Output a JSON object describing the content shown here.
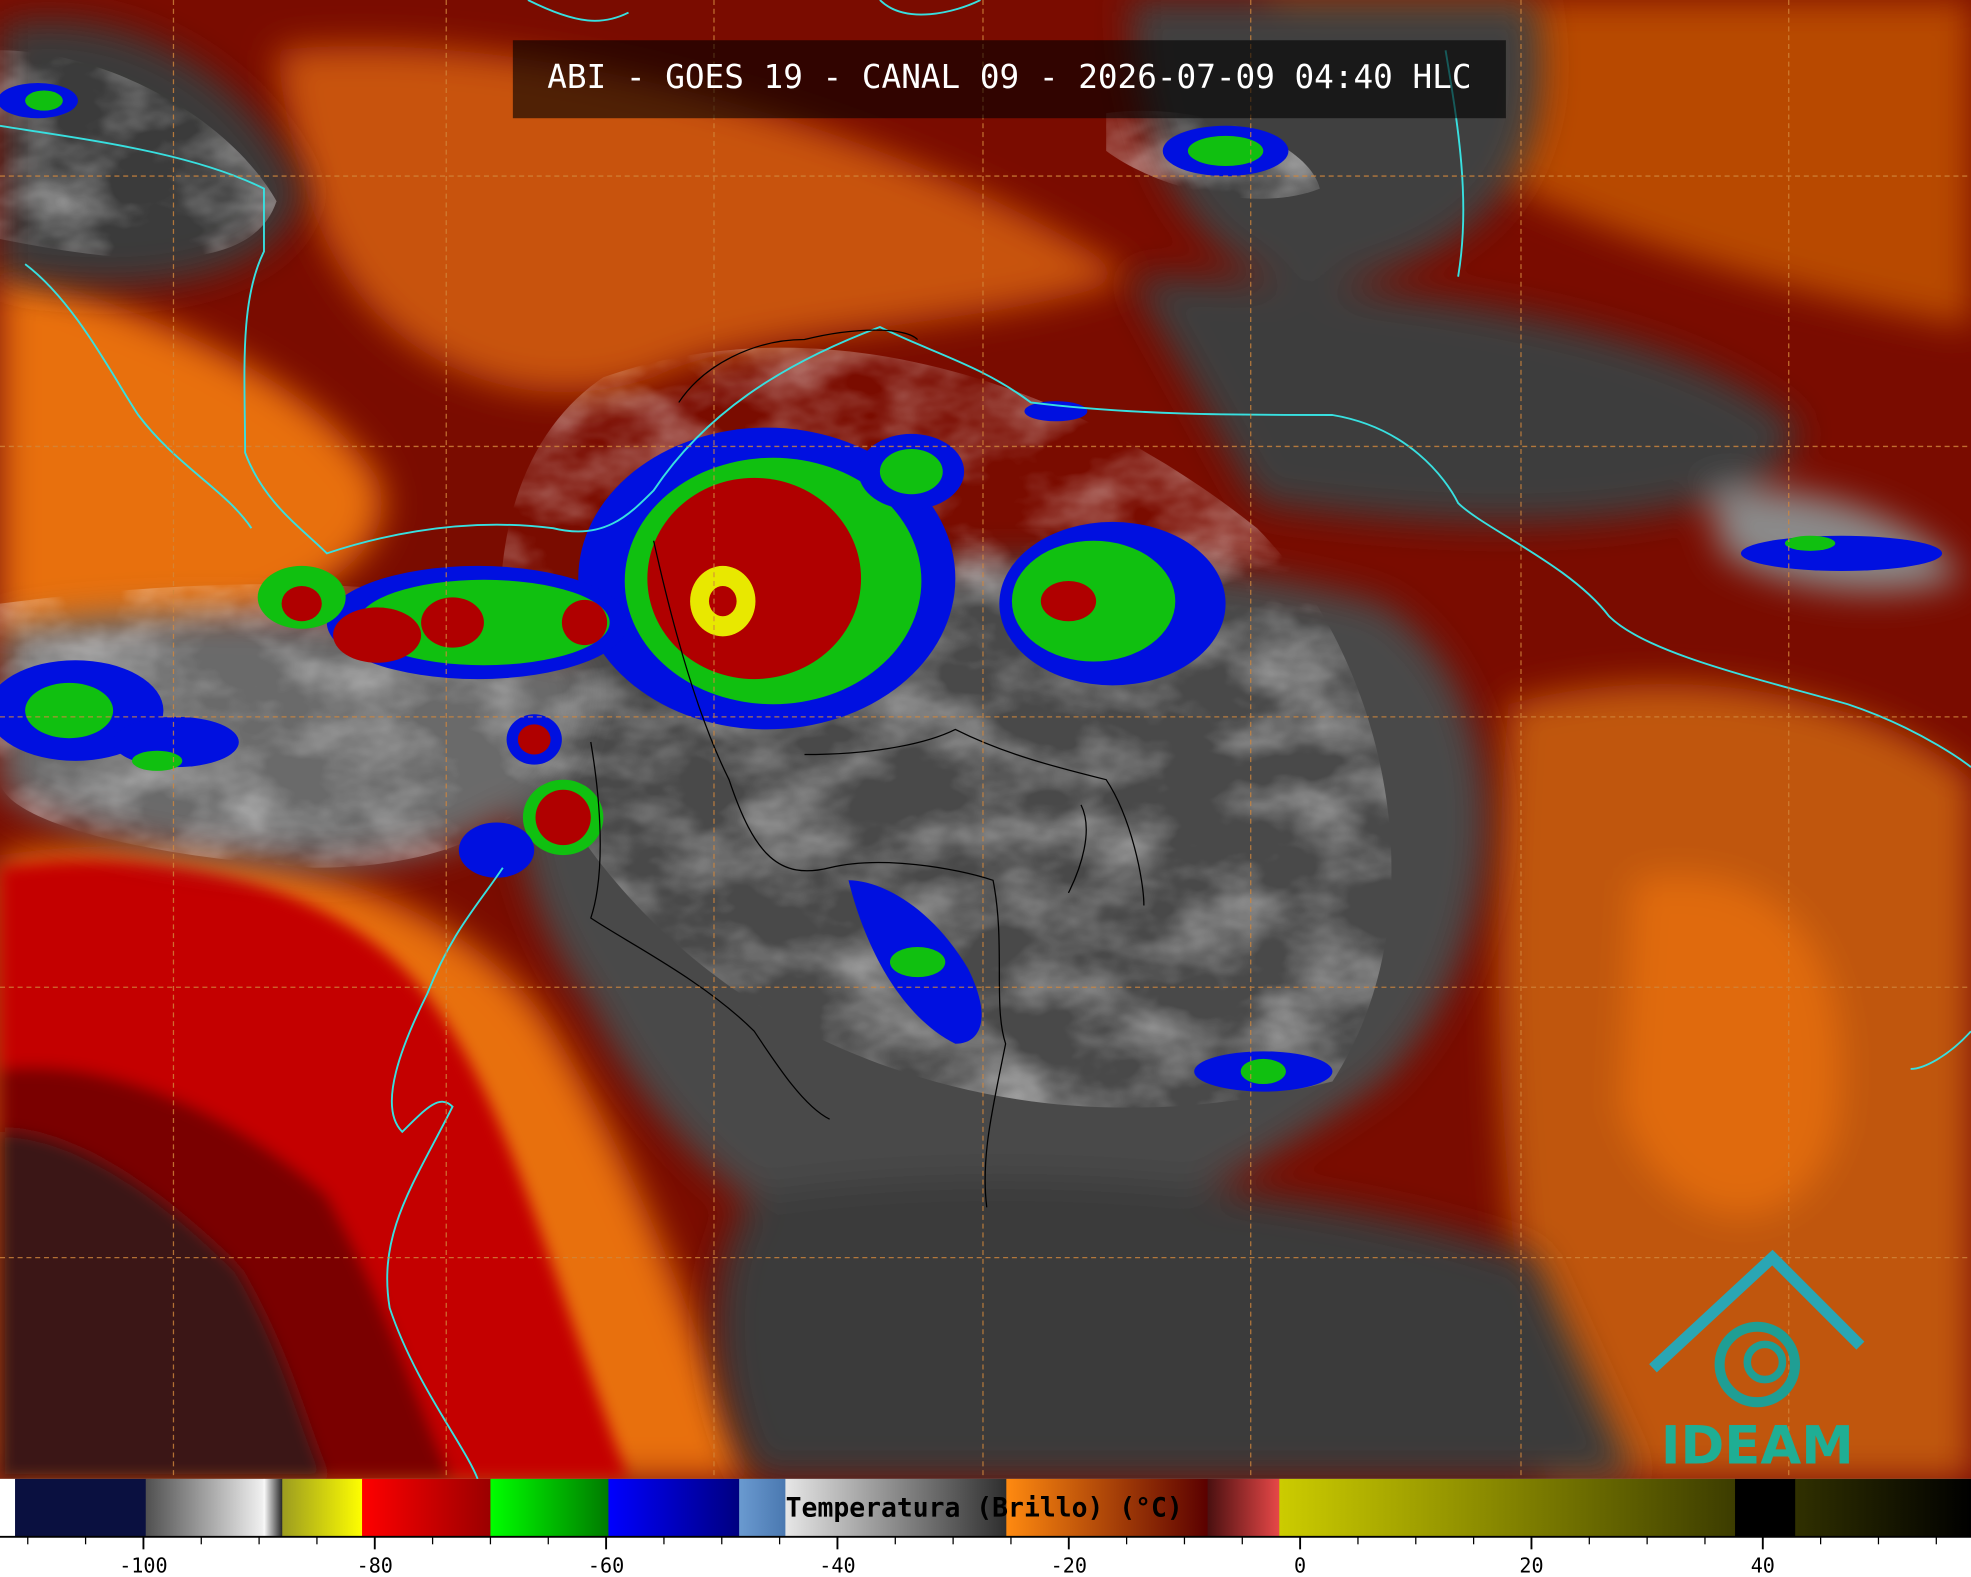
{
  "title": "ABI - GOES 19 - CANAL 09 - 2026-07-09 04:40 HLC",
  "logo": "IDEAM",
  "colorbar": {
    "label": "Temperatura (Brillo) (°C)",
    "range": [
      -112.4,
      58
    ],
    "ticks": [
      -100,
      -80,
      -60,
      -40,
      -20,
      0,
      20,
      40
    ],
    "minor_ticks": [
      -110,
      -105,
      -95,
      -90,
      -85,
      -75,
      -70,
      -65,
      -55,
      -50,
      -45,
      -35,
      -30,
      -25,
      -15,
      -10,
      -5,
      5,
      10,
      15,
      25,
      30,
      35,
      45,
      50,
      55
    ],
    "segments": [
      {
        "from": -112.4,
        "to": -111.1,
        "colors": [
          "#ffffff",
          "#ffffff"
        ]
      },
      {
        "from": -111.1,
        "to": -99.8,
        "colors": [
          "#0a1040",
          "#0a1040"
        ]
      },
      {
        "from": -99.8,
        "to": -89.6,
        "colors": [
          "#505050",
          "#f2f2f2"
        ]
      },
      {
        "from": -89.6,
        "to": -88,
        "colors": [
          "#ffffff",
          "#202020"
        ]
      },
      {
        "from": -88,
        "to": -81.1,
        "colors": [
          "#9c9c20",
          "#ffff00"
        ]
      },
      {
        "from": -81.1,
        "to": -70,
        "colors": [
          "#ff0000",
          "#9a0000"
        ]
      },
      {
        "from": -70,
        "to": -59.8,
        "colors": [
          "#00ff00",
          "#007a00"
        ]
      },
      {
        "from": -59.8,
        "to": -48.5,
        "colors": [
          "#0000ff",
          "#000080"
        ]
      },
      {
        "from": -48.5,
        "to": -44.5,
        "colors": [
          "#6a9ad0",
          "#4a78b0"
        ]
      },
      {
        "from": -44.5,
        "to": -25.4,
        "colors": [
          "#e6e6e6",
          "#2e2e2e"
        ]
      },
      {
        "from": -25.4,
        "to": -8,
        "colors": [
          "#ff8a10",
          "#5a0000"
        ]
      },
      {
        "from": -8,
        "to": -1.8,
        "colors": [
          "#4a1010",
          "#e84848"
        ]
      },
      {
        "from": -1.8,
        "to": 37.6,
        "colors": [
          "#cccc00",
          "#3c3c00"
        ]
      },
      {
        "from": 37.6,
        "to": 42.8,
        "colors": [
          "#000000",
          "#000000"
        ]
      },
      {
        "from": 42.8,
        "to": 58,
        "colors": [
          "#303000",
          "#000000"
        ]
      }
    ]
  }
}
